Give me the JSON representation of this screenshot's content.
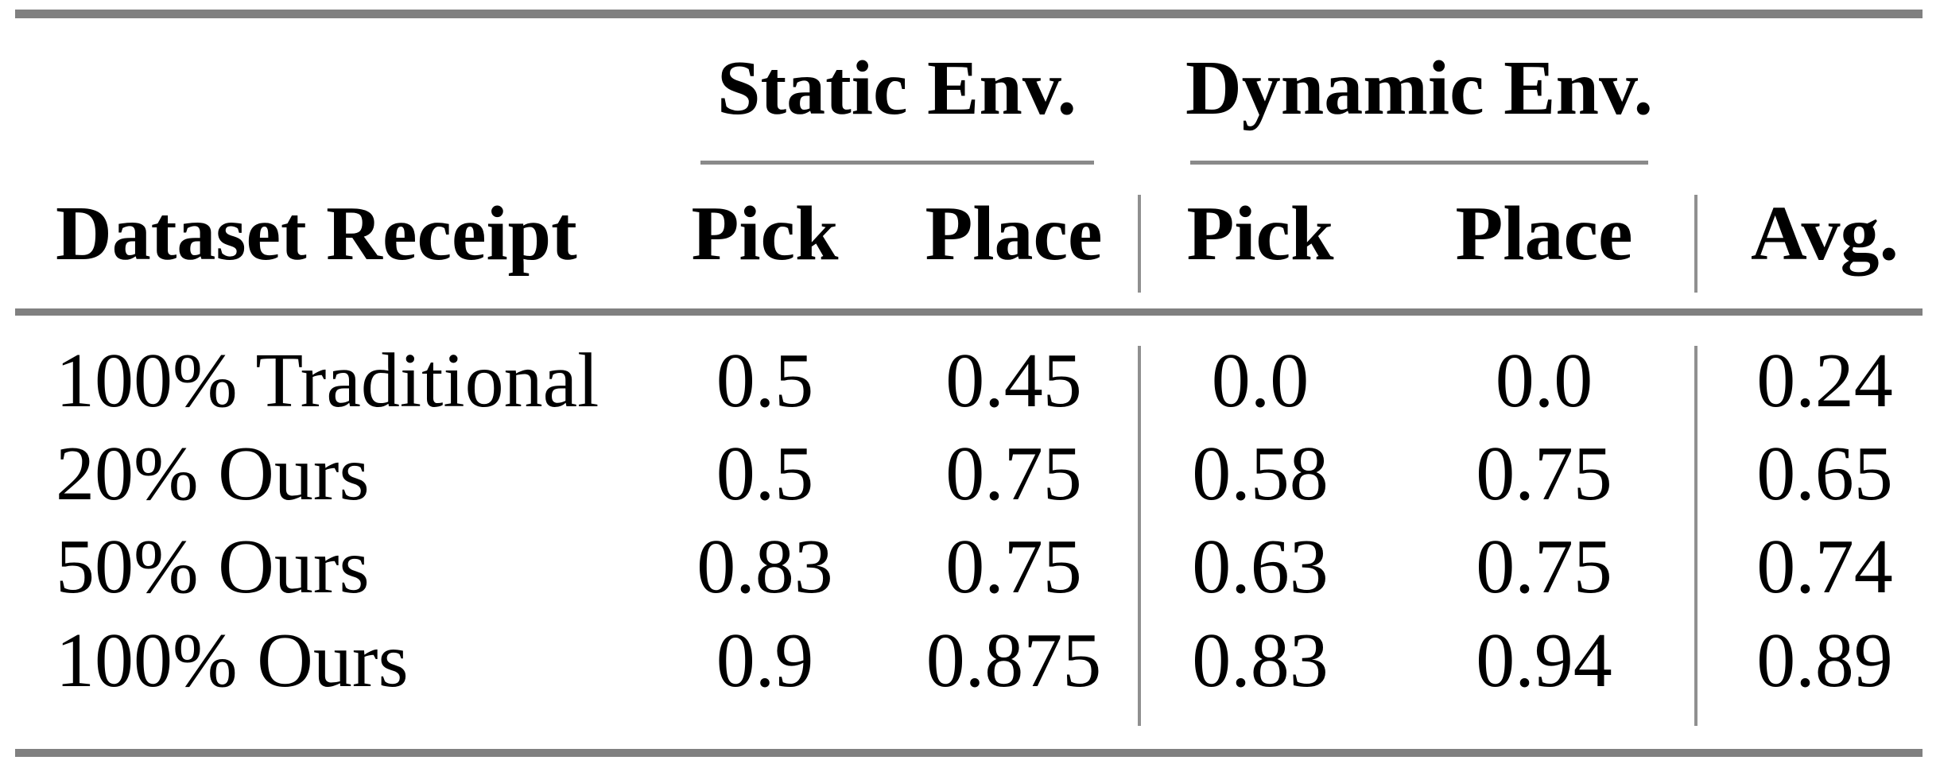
{
  "colors": {
    "background": "#ffffff",
    "text": "#000000",
    "heavy_rule": "#808080",
    "light_rule": "#8a8a8a",
    "divider": "#909090"
  },
  "table": {
    "group_headers": {
      "static": "Static Env.",
      "dynamic": "Dynamic Env."
    },
    "column_headers": {
      "dataset": "Dataset Receipt",
      "static_pick": "Pick",
      "static_place": "Place",
      "dynamic_pick": "Pick",
      "dynamic_place": "Place",
      "avg": "Avg."
    },
    "rows": [
      {
        "label": "100% Traditional",
        "static_pick": "0.5",
        "static_place": "0.45",
        "dynamic_pick": "0.0",
        "dynamic_place": "0.0",
        "avg": "0.24"
      },
      {
        "label": "20% Ours",
        "static_pick": "0.5",
        "static_place": "0.75",
        "dynamic_pick": "0.58",
        "dynamic_place": "0.75",
        "avg": "0.65"
      },
      {
        "label": "50% Ours",
        "static_pick": "0.83",
        "static_place": "0.75",
        "dynamic_pick": "0.63",
        "dynamic_place": "0.75",
        "avg": "0.74"
      },
      {
        "label": "100% Ours",
        "static_pick": "0.9",
        "static_place": "0.875",
        "dynamic_pick": "0.83",
        "dynamic_place": "0.94",
        "avg": "0.89"
      }
    ]
  }
}
